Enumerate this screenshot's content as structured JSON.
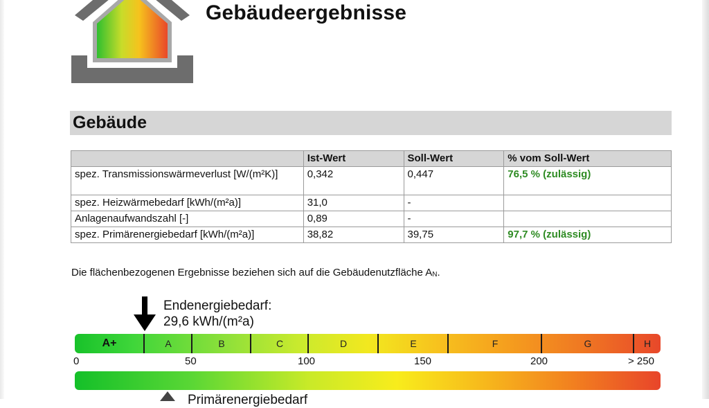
{
  "document": {
    "title": "Gebäudeergebnisse"
  },
  "section": {
    "title": "Gebäude"
  },
  "table": {
    "headers": [
      "",
      "Ist-Wert",
      "Soll-Wert",
      "% vom Soll-Wert"
    ],
    "rows": [
      {
        "label": "spez. Transmissionswärmeverlust [W/(m²K)]",
        "ist": "0,342",
        "soll": "0,447",
        "percent": "76,5 % (zulässig)"
      },
      {
        "label": "spez. Heizwärmebedarf [kWh/(m²a)]",
        "ist": "31,0",
        "soll": "-",
        "percent": ""
      },
      {
        "label": "Anlagenaufwandszahl [-]",
        "ist": "0,89",
        "soll": "-",
        "percent": ""
      },
      {
        "label": "spez. Primärenergiebedarf [kWh/(m²a)]",
        "ist": "38,82",
        "soll": "39,75",
        "percent": "97,7 % (zulässig)"
      }
    ],
    "ok_color": "#2e8b23"
  },
  "note": {
    "text": "Die flächenbezogenen Ergebnisse beziehen sich auf die Gebäudenutzfläche A",
    "subscript": "N",
    "end": "."
  },
  "endenergie": {
    "label": "Endenergiebedarf:",
    "value": "29,6 kWh/(m²a)",
    "marker_value": 29.6
  },
  "scale": {
    "classes": [
      "A+",
      "A",
      "B",
      "C",
      "D",
      "E",
      "F",
      "G",
      "H"
    ],
    "ticks": [
      "0",
      "50",
      "100",
      "150",
      "200",
      "> 250"
    ],
    "max": 250
  },
  "primaerenergie": {
    "label": "Primärenergiebedarf"
  }
}
